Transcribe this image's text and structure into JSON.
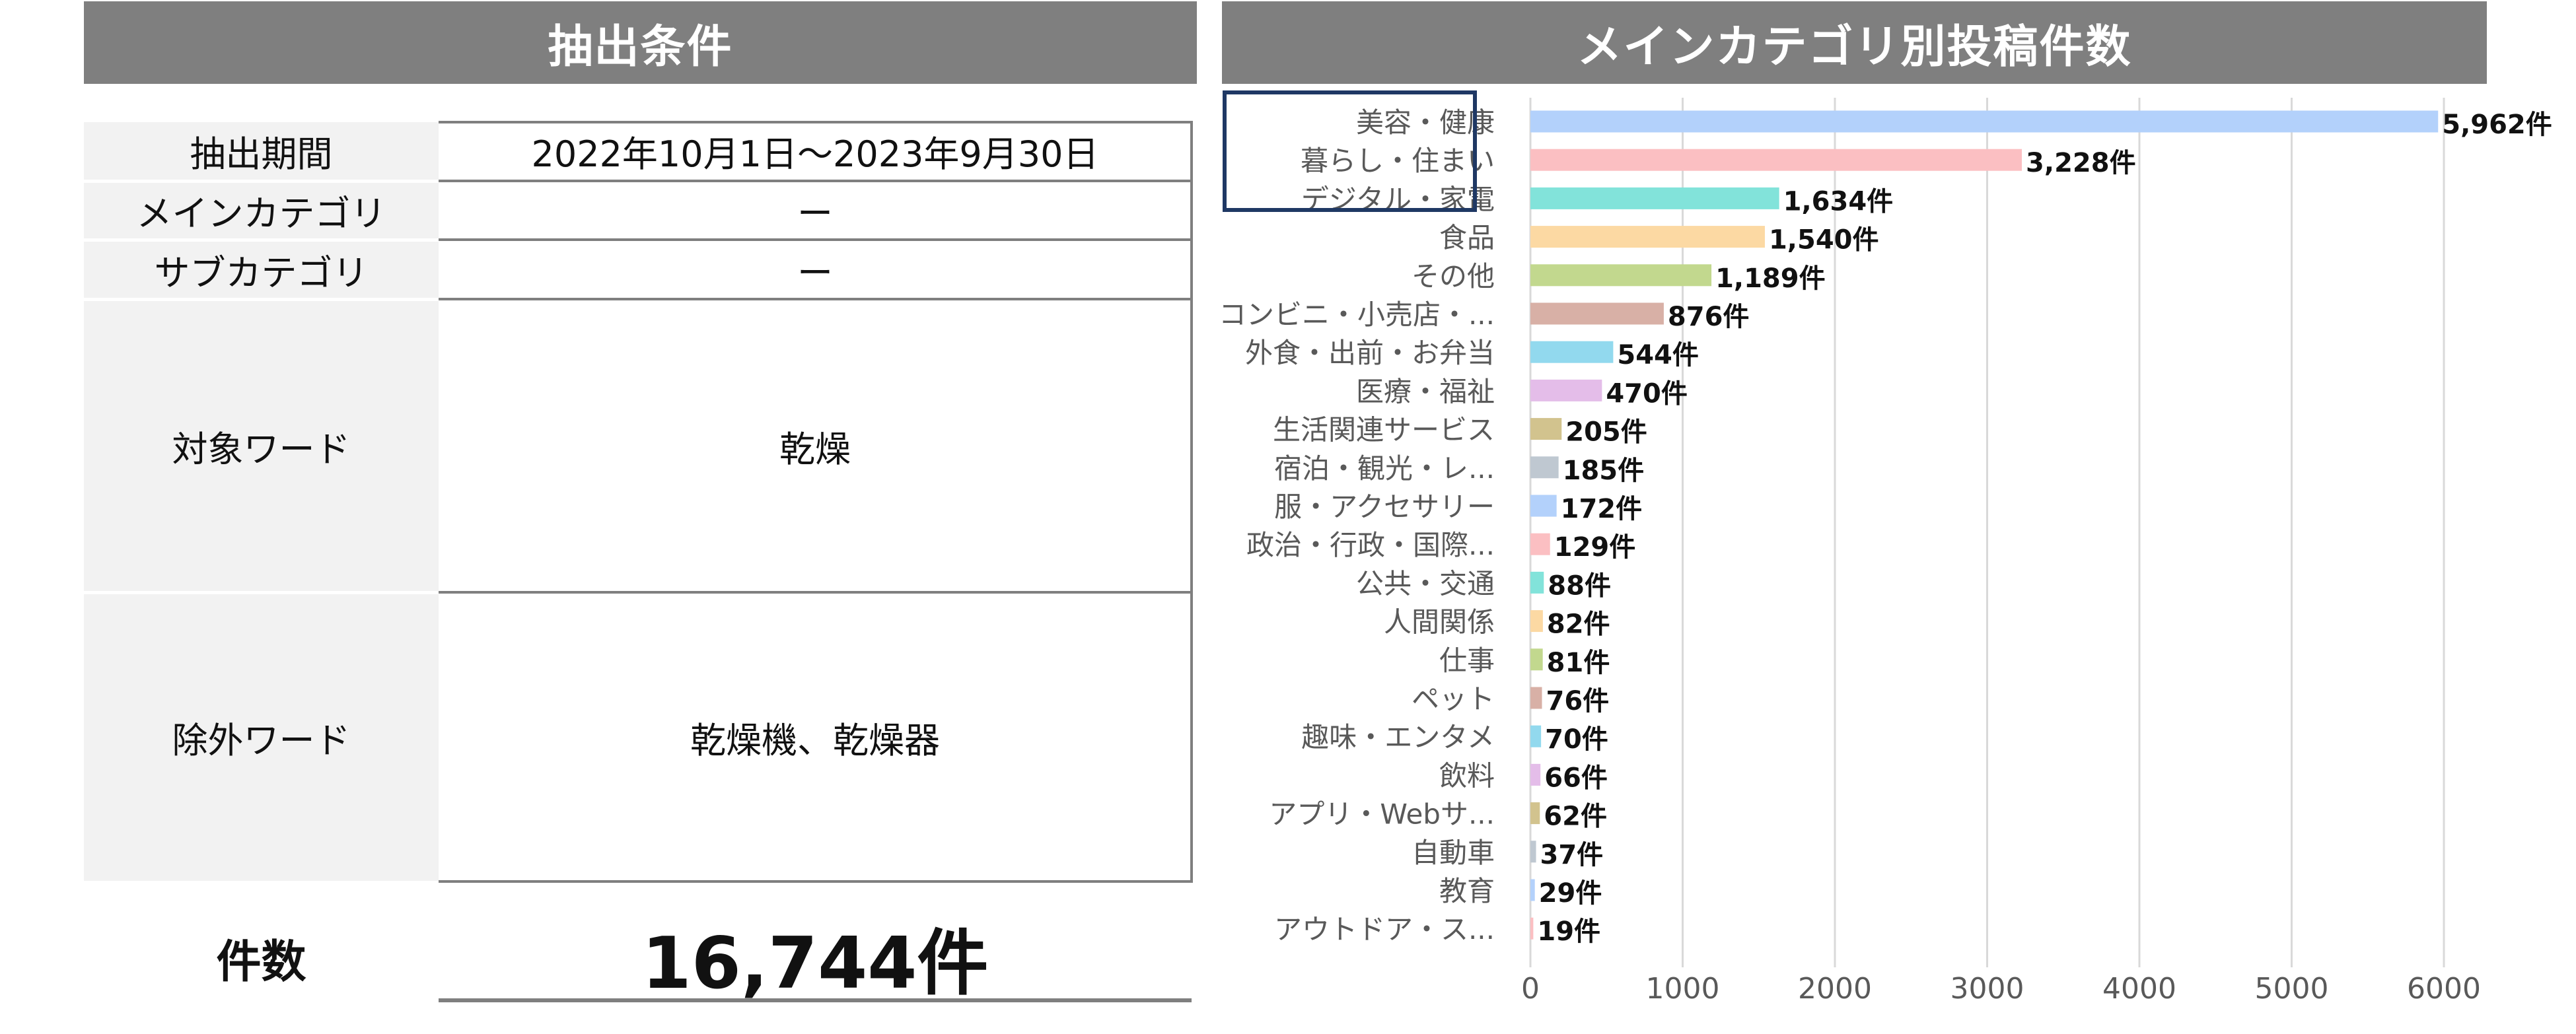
{
  "left_panel": {
    "header": "抽出条件",
    "rows": [
      {
        "label": "抽出期間",
        "value": "2022年10月1日～2023年9月30日"
      },
      {
        "label": "メインカテゴリ",
        "value": "ー"
      },
      {
        "label": "サブカテゴリ",
        "value": "ー"
      },
      {
        "label": "対象ワード",
        "value": "乾燥"
      },
      {
        "label": "除外ワード",
        "value": "乾燥機、乾燥器"
      }
    ],
    "count_label": "件数",
    "count_value": "16,744件"
  },
  "right_panel": {
    "header": "メインカテゴリ別投稿件数"
  },
  "chart_data": {
    "type": "bar",
    "orientation": "horizontal",
    "title": "メインカテゴリ別投稿件数",
    "value_suffix": "件",
    "categories": [
      "美容・健康",
      "暮らし・住まい",
      "デジタル・家電",
      "食品",
      "その他",
      "コンビニ・小売店・...",
      "外食・出前・お弁当",
      "医療・福祉",
      "生活関連サービス",
      "宿泊・観光・レ...",
      "服・アクセサリー",
      "政治・行政・国際...",
      "公共・交通",
      "人間関係",
      "仕事",
      "ペット",
      "趣味・エンタメ",
      "飲料",
      "アプリ・Webサ...",
      "自動車",
      "教育",
      "アウトドア・ス..."
    ],
    "values": [
      5962,
      3228,
      1634,
      1540,
      1189,
      876,
      544,
      470,
      205,
      185,
      172,
      129,
      88,
      82,
      81,
      76,
      70,
      66,
      62,
      37,
      29,
      19
    ],
    "value_labels": [
      "5,962件",
      "3,228件",
      "1,634件",
      "1,540件",
      "1,189件",
      "876件",
      "544件",
      "470件",
      "205件",
      "185件",
      "172件",
      "129件",
      "88件",
      "82件",
      "81件",
      "76件",
      "70件",
      "66件",
      "62件",
      "37件",
      "29件",
      "19件"
    ],
    "colors": [
      "#b3d1fb",
      "#fbbfc2",
      "#82e3da",
      "#fcd9a3",
      "#c2d88e",
      "#d8b0a6",
      "#92d9ee",
      "#e4bde9",
      "#d2c38e",
      "#bfc8d1",
      "#b3d1fb",
      "#fbbfc2",
      "#82e3da",
      "#fcd9a3",
      "#c2d88e",
      "#d8b0a6",
      "#92d9ee",
      "#e4bde9",
      "#d2c38e",
      "#bfc8d1",
      "#b3d1fb",
      "#fbbfc2"
    ],
    "xlim": [
      0,
      6000
    ],
    "xticks": [
      0,
      1000,
      2000,
      3000,
      4000,
      5000,
      6000
    ],
    "grid": true,
    "highlighted_categories": [
      "美容・健康",
      "暮らし・住まい",
      "デジタル・家電"
    ]
  }
}
